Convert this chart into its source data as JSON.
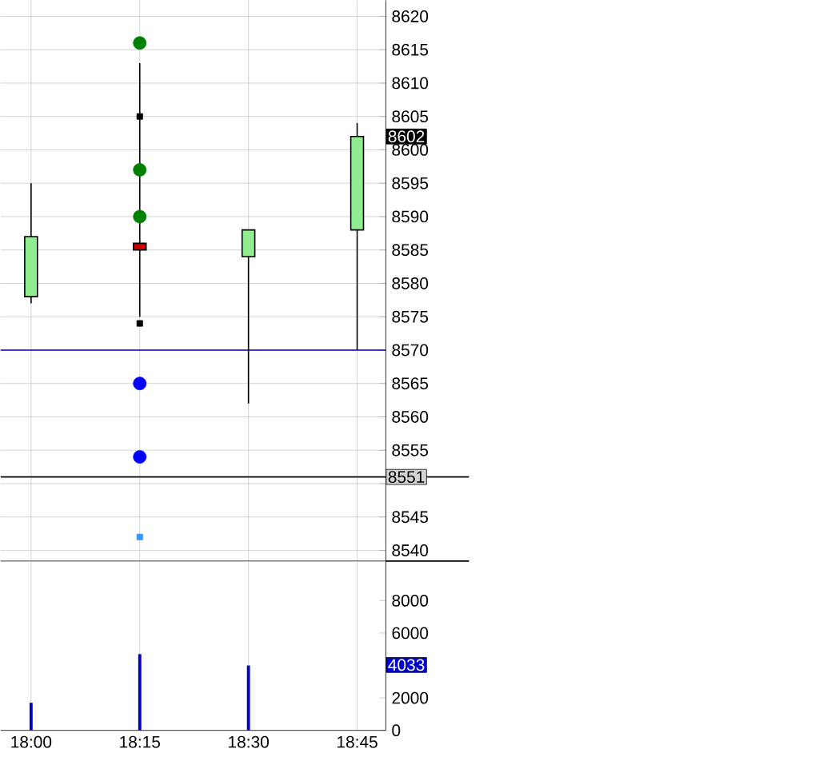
{
  "chart_data": [
    {
      "type": "candlestick",
      "x": [
        18,
        18.25,
        18.5,
        18.75
      ],
      "ohlc": [
        [
          8578,
          8595,
          8577,
          8587
        ],
        [
          8586,
          8613,
          8575,
          8585
        ],
        [
          8584,
          8588,
          8562,
          8588
        ],
        [
          8588,
          8604,
          8570,
          8602
        ]
      ],
      "colors": [
        "#90ee90",
        "#cc0000",
        "#90ee90",
        "#90ee90"
      ],
      "series": [
        {
          "type": "scatter",
          "values": [
            null,
            8616,
            null,
            null
          ],
          "color": "#008000",
          "marker": "circle"
        },
        {
          "type": "scatter",
          "values": [
            null,
            8597,
            null,
            null
          ],
          "color": "#008000",
          "marker": "circle"
        },
        {
          "type": "scatter",
          "values": [
            null,
            8590,
            null,
            null
          ],
          "color": "#008000",
          "marker": "circle"
        },
        {
          "type": "scatter",
          "values": [
            null,
            8605,
            null,
            null
          ],
          "color": "#000000",
          "marker": "square"
        },
        {
          "type": "scatter",
          "values": [
            null,
            8574,
            null,
            null
          ],
          "color": "#000000",
          "marker": "square"
        },
        {
          "type": "scatter",
          "values": [
            null,
            8565,
            null,
            null
          ],
          "color": "#0000ff",
          "marker": "circle"
        },
        {
          "type": "scatter",
          "values": [
            null,
            8554,
            null,
            null
          ],
          "color": "#0000ff",
          "marker": "circle"
        },
        {
          "type": "scatter",
          "values": [
            null,
            8542,
            null,
            null
          ],
          "color": "#3399ff",
          "marker": "square"
        }
      ],
      "xlim": [
        17.93,
        18.816
      ],
      "ylim": [
        8538.4,
        8622.4
      ],
      "xticks": [
        18,
        18.25,
        18.5,
        18.75
      ],
      "yticks": [
        8540,
        8545,
        {
          "value": 8550,
          "label": null
        },
        8555,
        8560,
        8565,
        8570,
        8575,
        8580,
        8585,
        8590,
        8595,
        8600,
        8605,
        8610,
        8615,
        8620
      ],
      "tick_labels": "y",
      "grid": true,
      "ref_lines": [
        {
          "axis": "y",
          "value": 8570,
          "color": "#0000cc"
        },
        {
          "axis": "y",
          "value": 8551,
          "label": "8551",
          "color": "#000000"
        }
      ],
      "annotations": [
        {
          "text": "8602",
          "y": 8602
        }
      ]
    },
    {
      "type": "bar",
      "x": [
        18,
        18.25,
        18.5
      ],
      "values": [
        1700,
        4700,
        4000
      ],
      "color": "#0000cc",
      "xlim": [
        17.93,
        18.816
      ],
      "ylim": [
        0,
        10440
      ],
      "xticks": [
        {
          "value": 18,
          "label": "18:00"
        },
        {
          "value": 18.25,
          "label": "18:15"
        },
        {
          "value": 18.5,
          "label": "18:30"
        },
        {
          "value": 18.75,
          "label": "18:45"
        }
      ],
      "yticks": [
        0,
        2000,
        6000,
        8000
      ],
      "grid": "x",
      "annotations": [
        {
          "text": "4033",
          "y": 4033
        }
      ]
    }
  ]
}
